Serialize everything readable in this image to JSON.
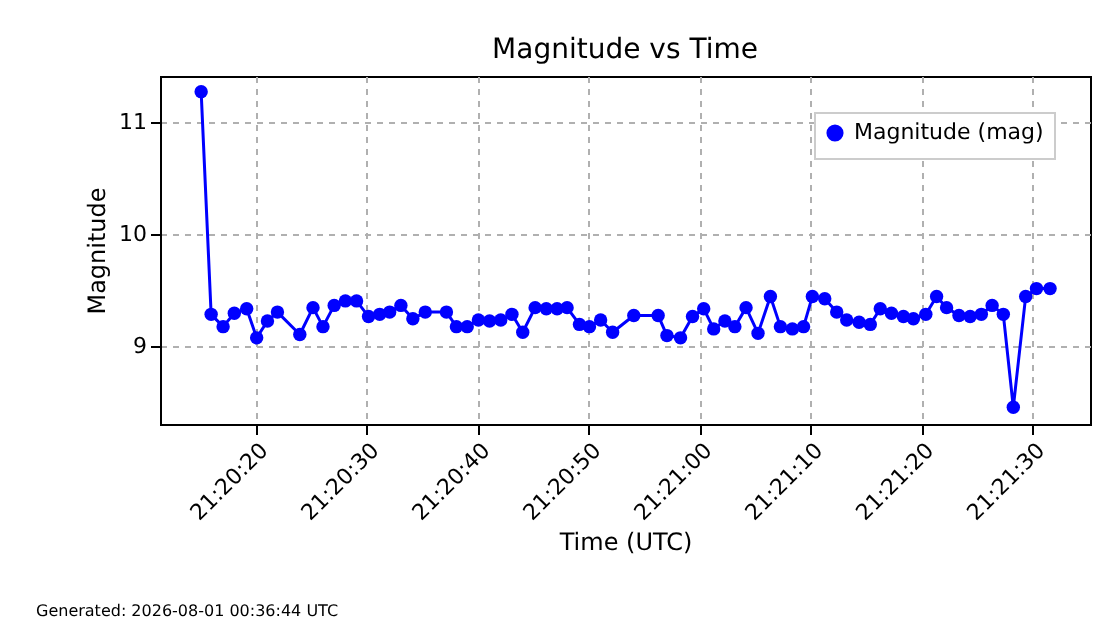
{
  "chart_data": {
    "type": "line",
    "title": "Magnitude vs Time",
    "xlabel": "Time (UTC)",
    "ylabel": "Magnitude",
    "annotations": [
      "Generated: 2026-08-01 00:36:44 UTC"
    ],
    "x": [
      21.33753,
      21.33778,
      21.33808,
      21.33836,
      21.33867,
      21.33892,
      21.33919,
      21.33944,
      21.34,
      21.34033,
      21.34058,
      21.34086,
      21.34114,
      21.34142,
      21.34172,
      21.342,
      21.34225,
      21.34253,
      21.34283,
      21.34314,
      21.34367,
      21.34392,
      21.34419,
      21.34447,
      21.34475,
      21.34503,
      21.34531,
      21.34558,
      21.34589,
      21.34617,
      21.34644,
      21.34669,
      21.347,
      21.34725,
      21.34753,
      21.34783,
      21.34836,
      21.34897,
      21.34919,
      21.34953,
      21.34983,
      21.35011,
      21.35036,
      21.35064,
      21.35089,
      21.35117,
      21.35147,
      21.35178,
      21.35203,
      21.35233,
      21.35261,
      21.35283,
      21.35314,
      21.35344,
      21.35369,
      21.354,
      21.35428,
      21.35453,
      21.35481,
      21.35511,
      21.35536,
      21.35567,
      21.35594,
      21.35619,
      21.3565,
      21.35678,
      21.35706,
      21.35733,
      21.35761,
      21.35786,
      21.35817,
      21.35844,
      21.35878
    ],
    "series": [
      {
        "name": "Magnitude (mag)",
        "color": "#0000ff",
        "values": [
          11.27,
          9.28,
          9.17,
          9.29,
          9.33,
          9.07,
          9.22,
          9.3,
          9.1,
          9.34,
          9.17,
          9.36,
          9.4,
          9.4,
          9.26,
          9.28,
          9.3,
          9.36,
          9.24,
          9.3,
          9.3,
          9.17,
          9.17,
          9.23,
          9.22,
          9.23,
          9.28,
          9.12,
          9.34,
          9.33,
          9.33,
          9.34,
          9.19,
          9.17,
          9.23,
          9.12,
          9.27,
          9.27,
          9.09,
          9.07,
          9.26,
          9.33,
          9.15,
          9.22,
          9.17,
          9.34,
          9.11,
          9.44,
          9.17,
          9.15,
          9.17,
          9.44,
          9.42,
          9.3,
          9.23,
          9.21,
          9.19,
          9.33,
          9.29,
          9.26,
          9.24,
          9.28,
          9.44,
          9.34,
          9.27,
          9.26,
          9.28,
          9.36,
          9.28,
          8.45,
          9.44,
          9.51,
          9.51
        ]
      }
    ],
    "xlim": [
      21.3365,
      21.35978
    ],
    "xticks": [
      {
        "value": 21.338889,
        "label": "21:20:20"
      },
      {
        "value": 21.341667,
        "label": "21:20:30"
      },
      {
        "value": 21.344444,
        "label": "21:20:40"
      },
      {
        "value": 21.347222,
        "label": "21:20:50"
      },
      {
        "value": 21.35,
        "label": "21:21:00"
      },
      {
        "value": 21.352778,
        "label": "21:21:10"
      },
      {
        "value": 21.355556,
        "label": "21:21:20"
      },
      {
        "value": 21.358333,
        "label": "21:21:30"
      }
    ],
    "ylim": [
      8.3,
      11.41
    ],
    "yticks": [
      9,
      10,
      11
    ],
    "grid": true,
    "legend": "top right",
    "marker": "circle",
    "line_style": "solid"
  }
}
